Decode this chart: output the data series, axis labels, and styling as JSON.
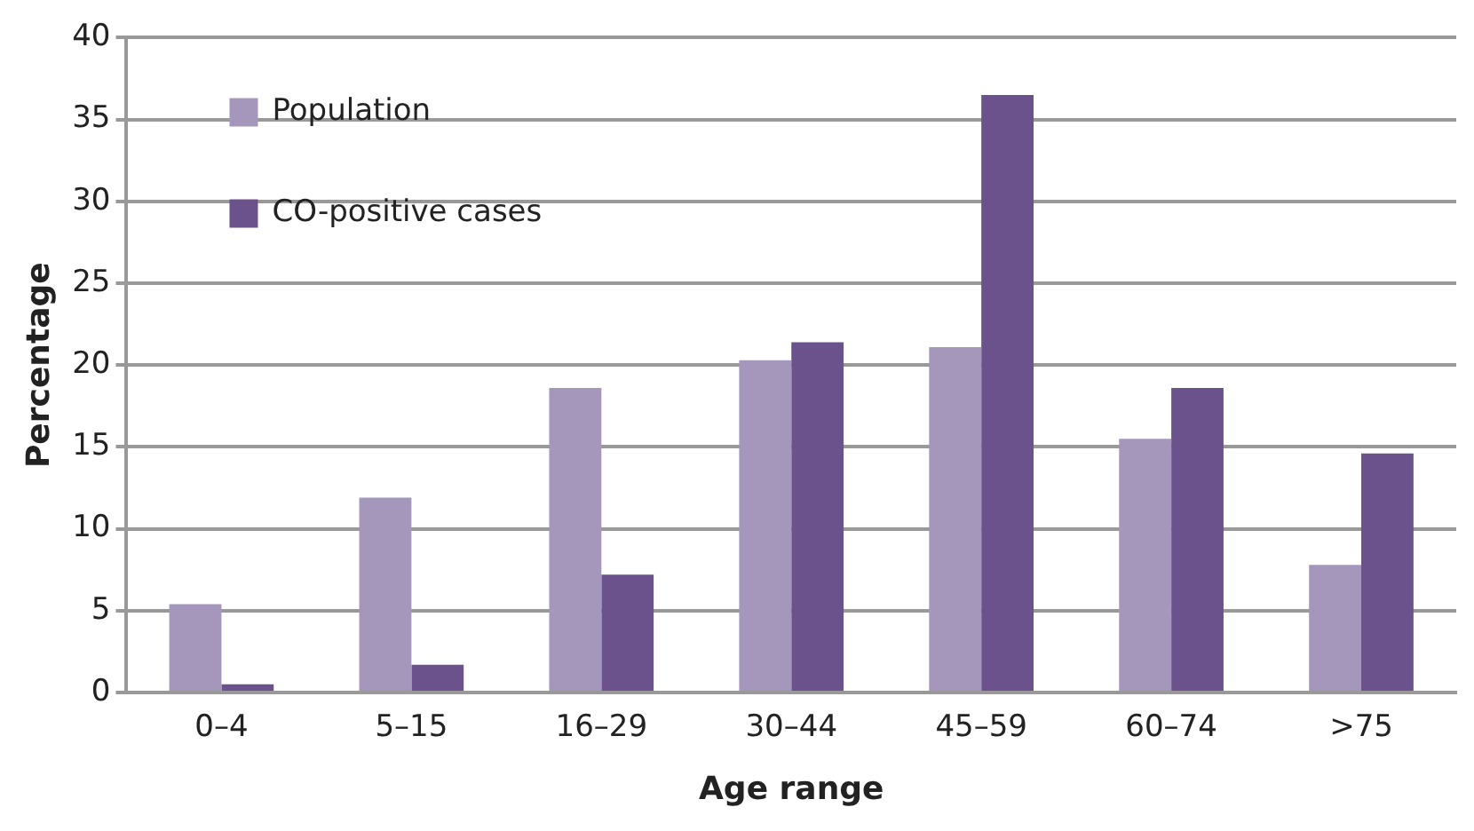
{
  "chart_data": {
    "type": "bar",
    "xlabel": "Age range",
    "ylabel": "Percentage",
    "categories": [
      "0–4",
      "5–15",
      "16–29",
      "30–44",
      "45–59",
      "60–74",
      ">75"
    ],
    "series": [
      {
        "name": "Population",
        "color": "#a597bb",
        "values": [
          5.4,
          11.9,
          18.6,
          20.3,
          21.1,
          15.5,
          7.8
        ]
      },
      {
        "name": "CO-positive cases",
        "color": "#6c528c",
        "values": [
          0.5,
          1.7,
          7.2,
          21.4,
          36.5,
          18.6,
          14.6
        ]
      }
    ],
    "ylim": [
      0,
      40
    ],
    "yticks": [
      0,
      5,
      10,
      15,
      20,
      25,
      30,
      35,
      40
    ],
    "grid": "y",
    "legend": "top left"
  }
}
